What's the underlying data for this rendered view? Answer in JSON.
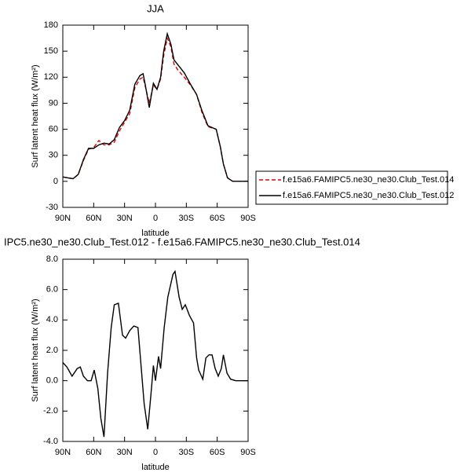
{
  "chart_data": [
    {
      "type": "line",
      "title": "JJA",
      "xlabel": "latitude",
      "ylabel": "Surf latent heat flux (W/m²)",
      "xlim": [
        90,
        -90
      ],
      "xticks": [
        {
          "value": 90,
          "label": "90N"
        },
        {
          "value": 60,
          "label": "60N"
        },
        {
          "value": 30,
          "label": "30N"
        },
        0,
        {
          "value": -30,
          "label": "30S"
        },
        {
          "value": -60,
          "label": "60S"
        },
        {
          "value": -90,
          "label": "90S"
        }
      ],
      "ylim": [
        -30,
        180
      ],
      "yticks": [
        -30,
        0,
        30,
        60,
        90,
        120,
        150,
        180
      ],
      "legend": "right",
      "x": [
        90,
        85,
        80,
        75,
        70,
        65,
        60,
        55,
        50,
        45,
        40,
        35,
        30,
        25,
        20,
        15,
        12,
        10,
        6,
        2,
        -1.5,
        -5,
        -8,
        -11.5,
        -15,
        -18,
        -22,
        -28,
        -34,
        -40,
        -45,
        -51,
        -59,
        -63,
        -66,
        -70,
        -75,
        -80,
        -90
      ],
      "series": [
        {
          "name": "f.e15a6.FAMIPC5.ne30_ne30.Club_Test.014",
          "color": "#e00000",
          "line_style": "dashed",
          "values": [
            5,
            4,
            3,
            8,
            24,
            37,
            39,
            47,
            42,
            42,
            45,
            58,
            68,
            78,
            108,
            118,
            120,
            110,
            90,
            111,
            106,
            118,
            145,
            165,
            155,
            135,
            128,
            120,
            111,
            100,
            80,
            63,
            60,
            40,
            20,
            4,
            0,
            0,
            0
          ]
        },
        {
          "name": "f.e15a6.FAMIPC5.ne30_ne30.Club_Test.012",
          "color": "#000000",
          "line_style": "solid",
          "values": [
            5,
            4,
            3,
            8,
            25,
            38,
            38,
            42,
            44,
            43,
            48,
            62,
            70,
            82,
            112,
            122,
            124,
            112,
            85,
            113,
            106,
            120,
            150,
            170,
            158,
            140,
            134,
            125,
            112,
            100,
            82,
            64,
            60,
            40,
            20,
            4,
            0,
            0,
            0
          ]
        }
      ]
    },
    {
      "type": "line",
      "title": "IPC5.ne30_ne30.Club_Test.012 - f.e15a6.FAMIPC5.ne30_ne30.Club_Test.014",
      "xlabel": "latitude",
      "ylabel": "Surf latent heat flux (W/m²)",
      "xlim": [
        90,
        -90
      ],
      "xticks": [
        {
          "value": 90,
          "label": "90N"
        },
        {
          "value": 60,
          "label": "60N"
        },
        {
          "value": 30,
          "label": "30N"
        },
        0,
        {
          "value": -30,
          "label": "30S"
        },
        {
          "value": -60,
          "label": "60S"
        },
        {
          "value": -90,
          "label": "90S"
        }
      ],
      "ylim": [
        -4,
        8
      ],
      "yticks": [
        {
          "value": -4,
          "label": "-4.0"
        },
        {
          "value": -2,
          "label": "-2.0"
        },
        {
          "value": 0,
          "label": "0.0"
        },
        {
          "value": 2,
          "label": "2.0"
        },
        {
          "value": 4,
          "label": "4.0"
        },
        {
          "value": 6,
          "label": "6.0"
        },
        {
          "value": 8,
          "label": "8.0"
        }
      ],
      "x": [
        90,
        86,
        81,
        76,
        73,
        70,
        66,
        62.5,
        59.5,
        56,
        53,
        50,
        46.5,
        43,
        40,
        36,
        32,
        29,
        25,
        21,
        17,
        14,
        11,
        7.5,
        4.5,
        2,
        0,
        -3,
        -5,
        -8.5,
        -12,
        -17,
        -19,
        -23,
        -26,
        -29,
        -33,
        -37,
        -40,
        -42,
        -46,
        -49,
        -52,
        -55,
        -58,
        -61,
        -64,
        -66,
        -69.5,
        -73,
        -78,
        -90
      ],
      "series": [
        {
          "color": "#000000",
          "line_style": "solid",
          "values": [
            1.2,
            0.9,
            0.3,
            0.8,
            0.9,
            0.3,
            0.0,
            0.0,
            0.7,
            -0.5,
            -2.5,
            -3.7,
            0.5,
            3.5,
            5.0,
            5.1,
            3.0,
            2.8,
            3.3,
            3.6,
            3.5,
            1.0,
            -1.5,
            -3.2,
            -1.0,
            1.0,
            0.0,
            1.6,
            0.8,
            3.5,
            5.5,
            7.0,
            7.2,
            5.5,
            4.7,
            5.0,
            4.3,
            3.8,
            1.5,
            0.7,
            0.1,
            1.5,
            1.7,
            1.7,
            0.8,
            0.3,
            0.8,
            1.7,
            0.5,
            0.1,
            0.0,
            0.0
          ]
        }
      ]
    }
  ]
}
